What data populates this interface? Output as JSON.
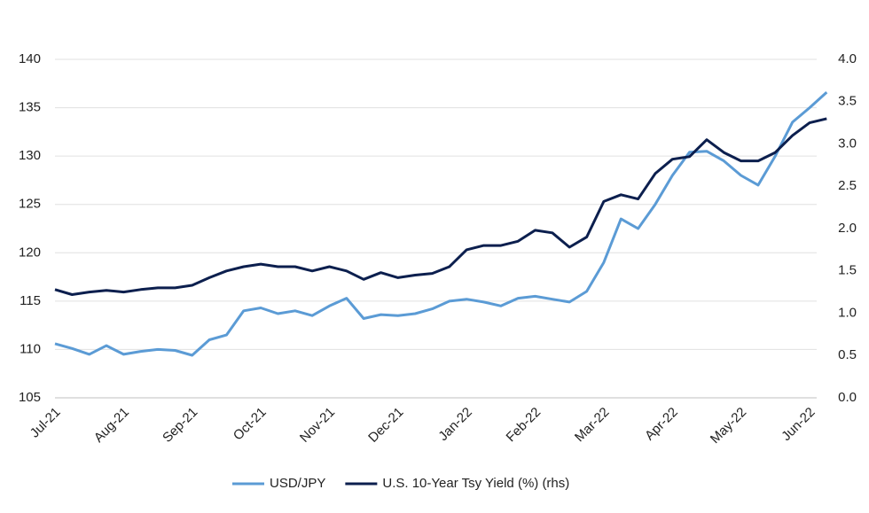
{
  "chart_data": {
    "type": "line",
    "categories": [
      "Jul-21",
      null,
      null,
      null,
      "Aug-21",
      null,
      null,
      null,
      "Sep-21",
      null,
      null,
      null,
      "Oct-21",
      null,
      null,
      null,
      "Nov-21",
      null,
      null,
      null,
      "Dec-21",
      null,
      null,
      null,
      "Jan-22",
      null,
      null,
      null,
      "Feb-22",
      null,
      null,
      null,
      "Mar-22",
      null,
      null,
      null,
      "Apr-22",
      null,
      null,
      null,
      "May-22",
      null,
      null,
      null,
      "Jun-22",
      null
    ],
    "series": [
      {
        "name": "USD/JPY",
        "color": "#5b9bd5",
        "axis": "y",
        "values": [
          110.6,
          110.1,
          109.5,
          110.4,
          109.5,
          109.8,
          110.0,
          109.9,
          109.4,
          111.0,
          111.5,
          114.0,
          114.3,
          113.7,
          114.0,
          113.5,
          114.5,
          115.3,
          113.2,
          113.6,
          113.5,
          113.7,
          114.2,
          115.0,
          115.2,
          114.9,
          114.5,
          115.3,
          115.5,
          115.2,
          114.9,
          116.0,
          119.0,
          123.5,
          122.5,
          125.0,
          128.0,
          130.4,
          130.5,
          129.5,
          128.0,
          127.0,
          130.0,
          133.5,
          135.0,
          136.6
        ]
      },
      {
        "name": "U.S. 10-Year Tsy Yield (%) (rhs)",
        "color": "#0c1f4e",
        "axis": "y2",
        "values": [
          1.28,
          1.22,
          1.25,
          1.27,
          1.25,
          1.28,
          1.3,
          1.3,
          1.33,
          1.42,
          1.5,
          1.55,
          1.58,
          1.55,
          1.55,
          1.5,
          1.55,
          1.5,
          1.4,
          1.48,
          1.42,
          1.45,
          1.47,
          1.55,
          1.75,
          1.8,
          1.8,
          1.85,
          1.98,
          1.95,
          1.78,
          1.9,
          2.32,
          2.4,
          2.35,
          2.65,
          2.82,
          2.85,
          3.05,
          2.9,
          2.8,
          2.8,
          2.9,
          3.1,
          3.25,
          3.3
        ]
      }
    ],
    "ylim": [
      105,
      140
    ],
    "yticks": [
      105,
      110,
      115,
      120,
      125,
      130,
      135,
      140
    ],
    "y2lim": [
      0,
      4
    ],
    "y2ticks": [
      {
        "value": 0,
        "label": "0.0"
      },
      0.5,
      {
        "value": 1,
        "label": "1.0"
      },
      1.5,
      {
        "value": 2,
        "label": "2.0"
      },
      2.5,
      {
        "value": 3,
        "label": "3.0"
      },
      3.5,
      {
        "value": 4,
        "label": "4.0"
      }
    ],
    "grid": true,
    "legend": "bottom"
  }
}
